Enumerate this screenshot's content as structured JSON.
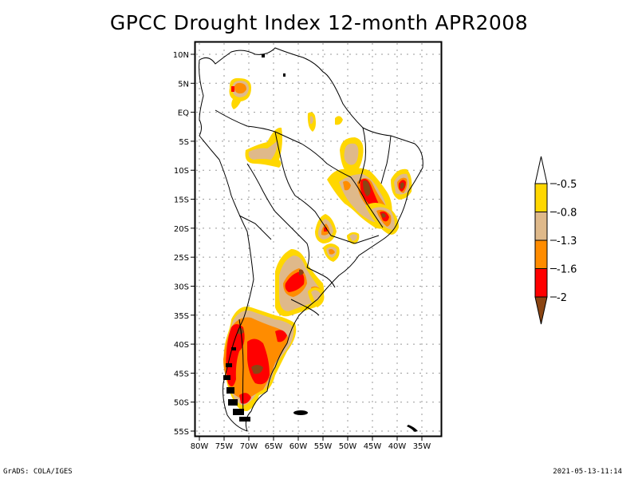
{
  "title": "GPCC Drought Index 12-month APR2008",
  "map": {
    "type": "map",
    "region": "South America",
    "lon_range": [
      -80,
      -30
    ],
    "lat_range": [
      -55,
      12
    ],
    "y_ticks": [
      "10N",
      "5N",
      "EQ",
      "5S",
      "10S",
      "15S",
      "20S",
      "25S",
      "30S",
      "35S",
      "40S",
      "45S",
      "50S",
      "55S"
    ],
    "y_tick_values": [
      10,
      5,
      0,
      -5,
      -10,
      -15,
      -20,
      -25,
      -30,
      -35,
      -40,
      -45,
      -50,
      -55
    ],
    "x_ticks": [
      "80W",
      "75W",
      "70W",
      "65W",
      "60W",
      "55W",
      "50W",
      "45W",
      "40W",
      "35W"
    ],
    "x_tick_values": [
      -80,
      -75,
      -70,
      -65,
      -60,
      -55,
      -50,
      -45,
      -40,
      -35
    ],
    "grid": "dotted"
  },
  "colorbar": {
    "levels": [
      "-0.5",
      "-0.8",
      "-1.3",
      "-1.6",
      "-2"
    ],
    "colors": {
      "above": "#ffffff",
      "band1": "#ffd700",
      "band2": "#dfb98a",
      "band3": "#ff8c00",
      "band4": "#ff0000",
      "below": "#8b4513"
    }
  },
  "footer": {
    "left": "GrADS: COLA/IGES",
    "right": "2021-05-13-11:14"
  }
}
